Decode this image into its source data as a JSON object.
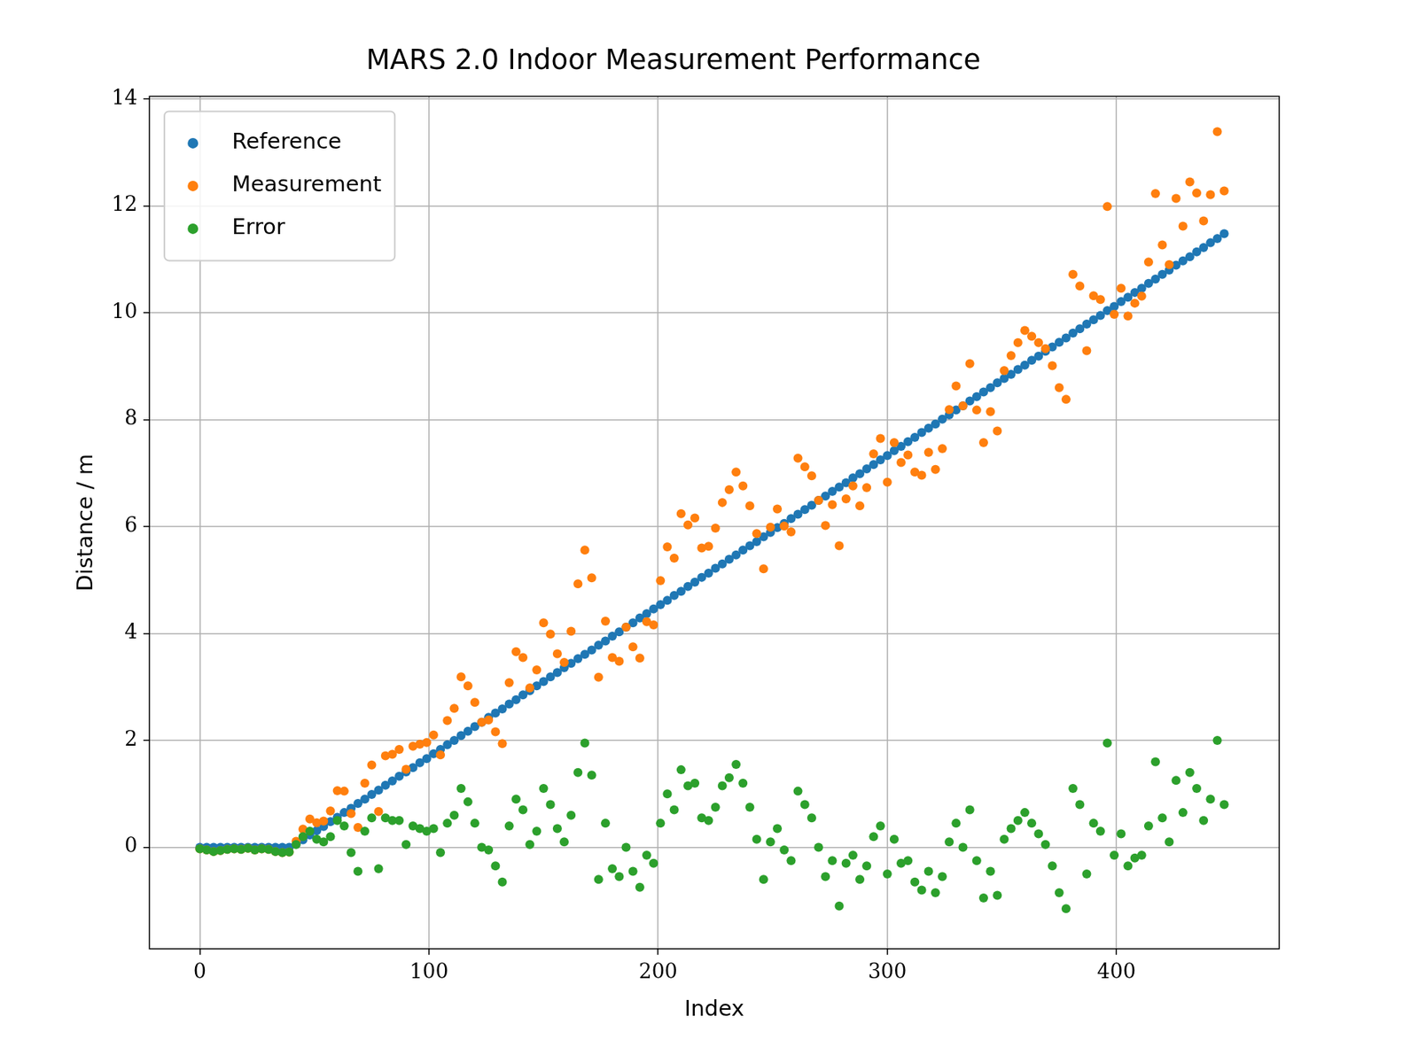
{
  "chart_data": {
    "type": "scatter",
    "title": "MARS 2.0 Indoor Measurement Performance",
    "x_label": "Index",
    "y_label": "Distance / m",
    "x": [
      0,
      3,
      6,
      9,
      12,
      15,
      18,
      21,
      24,
      27,
      30,
      33,
      36,
      39,
      42,
      45,
      48,
      51,
      54,
      57,
      60,
      63,
      66,
      69,
      72,
      75,
      78,
      81,
      84,
      87,
      90,
      93,
      96,
      99,
      102,
      105,
      108,
      111,
      114,
      117,
      120,
      123,
      126,
      129,
      132,
      135,
      138,
      141,
      144,
      147,
      150,
      153,
      156,
      159,
      162,
      165,
      168,
      171,
      174,
      177,
      180,
      183,
      186,
      189,
      192,
      195,
      198,
      201,
      204,
      207,
      210,
      213,
      216,
      219,
      222,
      225,
      228,
      231,
      234,
      237,
      240,
      243,
      246,
      249,
      252,
      255,
      258,
      261,
      264,
      267,
      270,
      273,
      276,
      279,
      282,
      285,
      288,
      291,
      294,
      297,
      300,
      303,
      306,
      309,
      312,
      315,
      318,
      321,
      324,
      327,
      330,
      333,
      336,
      339,
      342,
      345,
      348,
      351,
      354,
      357,
      360,
      363,
      366,
      369,
      372,
      375,
      378,
      381,
      384,
      387,
      390,
      393,
      396,
      399,
      402,
      405,
      408,
      411,
      414,
      417,
      420,
      423,
      426,
      429,
      432,
      435,
      438,
      441,
      444,
      447
    ],
    "series": [
      {
        "name": "Reference",
        "color": "#1f77b4",
        "marker": "circle",
        "values": [
          0,
          0,
          0,
          0,
          0,
          0,
          0,
          0,
          0,
          0,
          0,
          0,
          0,
          0,
          0.06,
          0.14,
          0.23,
          0.31,
          0.39,
          0.48,
          0.56,
          0.65,
          0.73,
          0.82,
          0.9,
          0.99,
          1.07,
          1.16,
          1.24,
          1.33,
          1.41,
          1.49,
          1.58,
          1.66,
          1.75,
          1.83,
          1.92,
          2.0,
          2.09,
          2.17,
          2.26,
          2.34,
          2.43,
          2.51,
          2.59,
          2.68,
          2.76,
          2.85,
          2.93,
          3.02,
          3.1,
          3.19,
          3.27,
          3.36,
          3.44,
          3.53,
          3.61,
          3.69,
          3.78,
          3.86,
          3.95,
          4.03,
          4.12,
          4.2,
          4.29,
          4.37,
          4.46,
          4.54,
          4.62,
          4.71,
          4.79,
          4.88,
          4.96,
          5.05,
          5.13,
          5.22,
          5.3,
          5.39,
          5.47,
          5.56,
          5.64,
          5.72,
          5.81,
          5.89,
          5.98,
          6.06,
          6.15,
          6.23,
          6.32,
          6.4,
          6.49,
          6.57,
          6.66,
          6.74,
          6.82,
          6.91,
          6.99,
          7.08,
          7.16,
          7.25,
          7.33,
          7.42,
          7.5,
          7.59,
          7.67,
          7.76,
          7.84,
          7.92,
          8.01,
          8.09,
          8.18,
          8.26,
          8.35,
          8.43,
          8.52,
          8.6,
          8.69,
          8.77,
          8.85,
          8.94,
          9.02,
          9.11,
          9.19,
          9.28,
          9.36,
          9.45,
          9.53,
          9.62,
          9.7,
          9.79,
          9.87,
          9.95,
          10.04,
          10.12,
          10.21,
          10.29,
          10.38,
          10.46,
          10.55,
          10.63,
          10.72,
          10.8,
          10.89,
          10.97,
          11.05,
          11.14,
          11.22,
          11.31,
          11.39,
          11.48
        ]
      },
      {
        "name": "Measurement",
        "color": "#ff7f0e",
        "marker": "circle",
        "values": [
          -0.03,
          -0.05,
          -0.08,
          -0.06,
          -0.04,
          -0.03,
          -0.04,
          -0.02,
          -0.05,
          -0.03,
          -0.04,
          -0.08,
          -0.1,
          -0.09,
          0.11,
          0.34,
          0.53,
          0.46,
          0.49,
          0.68,
          1.06,
          1.05,
          0.63,
          0.37,
          1.2,
          1.54,
          0.67,
          1.71,
          1.74,
          1.83,
          1.46,
          1.89,
          1.93,
          1.96,
          2.1,
          1.73,
          2.37,
          2.6,
          3.19,
          3.02,
          2.71,
          2.34,
          2.38,
          2.16,
          1.94,
          3.08,
          3.66,
          3.55,
          2.98,
          3.32,
          4.2,
          3.99,
          3.62,
          3.46,
          4.04,
          4.93,
          5.56,
          5.04,
          3.18,
          4.23,
          3.55,
          3.48,
          4.12,
          3.75,
          3.54,
          4.22,
          4.16,
          4.99,
          5.62,
          5.41,
          6.24,
          6.03,
          6.16,
          5.6,
          5.63,
          5.97,
          6.45,
          6.69,
          7.02,
          6.76,
          6.39,
          5.87,
          5.21,
          5.99,
          6.33,
          6.01,
          5.9,
          7.28,
          7.12,
          6.95,
          6.49,
          6.02,
          6.41,
          5.64,
          6.52,
          6.76,
          6.39,
          6.73,
          7.36,
          7.65,
          6.83,
          7.57,
          7.2,
          7.34,
          7.02,
          6.96,
          7.39,
          7.07,
          7.46,
          8.19,
          8.63,
          8.26,
          9.05,
          8.18,
          7.57,
          8.15,
          7.79,
          8.92,
          9.2,
          9.44,
          9.67,
          9.56,
          9.44,
          9.33,
          9.01,
          8.6,
          8.38,
          10.72,
          10.5,
          9.29,
          10.32,
          10.25,
          11.99,
          9.97,
          10.46,
          9.94,
          10.18,
          10.31,
          10.95,
          12.23,
          11.27,
          10.9,
          12.14,
          11.62,
          12.45,
          12.24,
          11.72,
          12.21,
          13.39,
          12.28
        ]
      },
      {
        "name": "Error",
        "color": "#2ca02c",
        "marker": "circle",
        "values": [
          -0.03,
          -0.05,
          -0.08,
          -0.06,
          -0.04,
          -0.03,
          -0.04,
          -0.02,
          -0.05,
          -0.03,
          -0.04,
          -0.08,
          -0.1,
          -0.09,
          0.05,
          0.2,
          0.3,
          0.15,
          0.1,
          0.2,
          0.5,
          0.4,
          -0.1,
          -0.45,
          0.3,
          0.55,
          -0.4,
          0.55,
          0.5,
          0.5,
          0.05,
          0.4,
          0.35,
          0.3,
          0.35,
          -0.1,
          0.45,
          0.6,
          1.1,
          0.85,
          0.45,
          0,
          -0.05,
          -0.35,
          -0.65,
          0.4,
          0.9,
          0.7,
          0.05,
          0.3,
          1.1,
          0.8,
          0.35,
          0.1,
          0.6,
          1.4,
          1.95,
          1.35,
          -0.6,
          0.45,
          -0.4,
          -0.55,
          0,
          -0.45,
          -0.75,
          -0.15,
          -0.3,
          0.45,
          1.0,
          0.7,
          1.45,
          1.15,
          1.2,
          0.55,
          0.5,
          0.75,
          1.15,
          1.3,
          1.55,
          1.2,
          0.75,
          0.15,
          -0.6,
          0.1,
          0.35,
          -0.05,
          -0.25,
          1.05,
          0.8,
          0.55,
          0,
          -0.55,
          -0.25,
          -1.1,
          -0.3,
          -0.15,
          -0.6,
          -0.35,
          0.2,
          0.4,
          -0.5,
          0.15,
          -0.3,
          -0.25,
          -0.65,
          -0.8,
          -0.45,
          -0.85,
          -0.55,
          0.1,
          0.45,
          0,
          0.7,
          -0.25,
          -0.95,
          -0.45,
          -0.9,
          0.15,
          0.35,
          0.5,
          0.65,
          0.45,
          0.25,
          0.05,
          -0.35,
          -0.85,
          -1.15,
          1.1,
          0.8,
          -0.5,
          0.45,
          0.3,
          1.95,
          -0.15,
          0.25,
          -0.35,
          -0.2,
          -0.15,
          0.4,
          1.6,
          0.55,
          0.1,
          1.25,
          0.65,
          1.4,
          1.1,
          0.5,
          0.9,
          2.0,
          0.8
        ]
      }
    ],
    "xlim": [
      -22,
      471
    ],
    "ylim": [
      -1.9,
      14.05
    ],
    "xticks": [
      0,
      100,
      200,
      300,
      400
    ],
    "yticks": [
      0,
      2,
      4,
      6,
      8,
      10,
      12,
      14
    ],
    "grid": true,
    "legend": "upper left"
  }
}
